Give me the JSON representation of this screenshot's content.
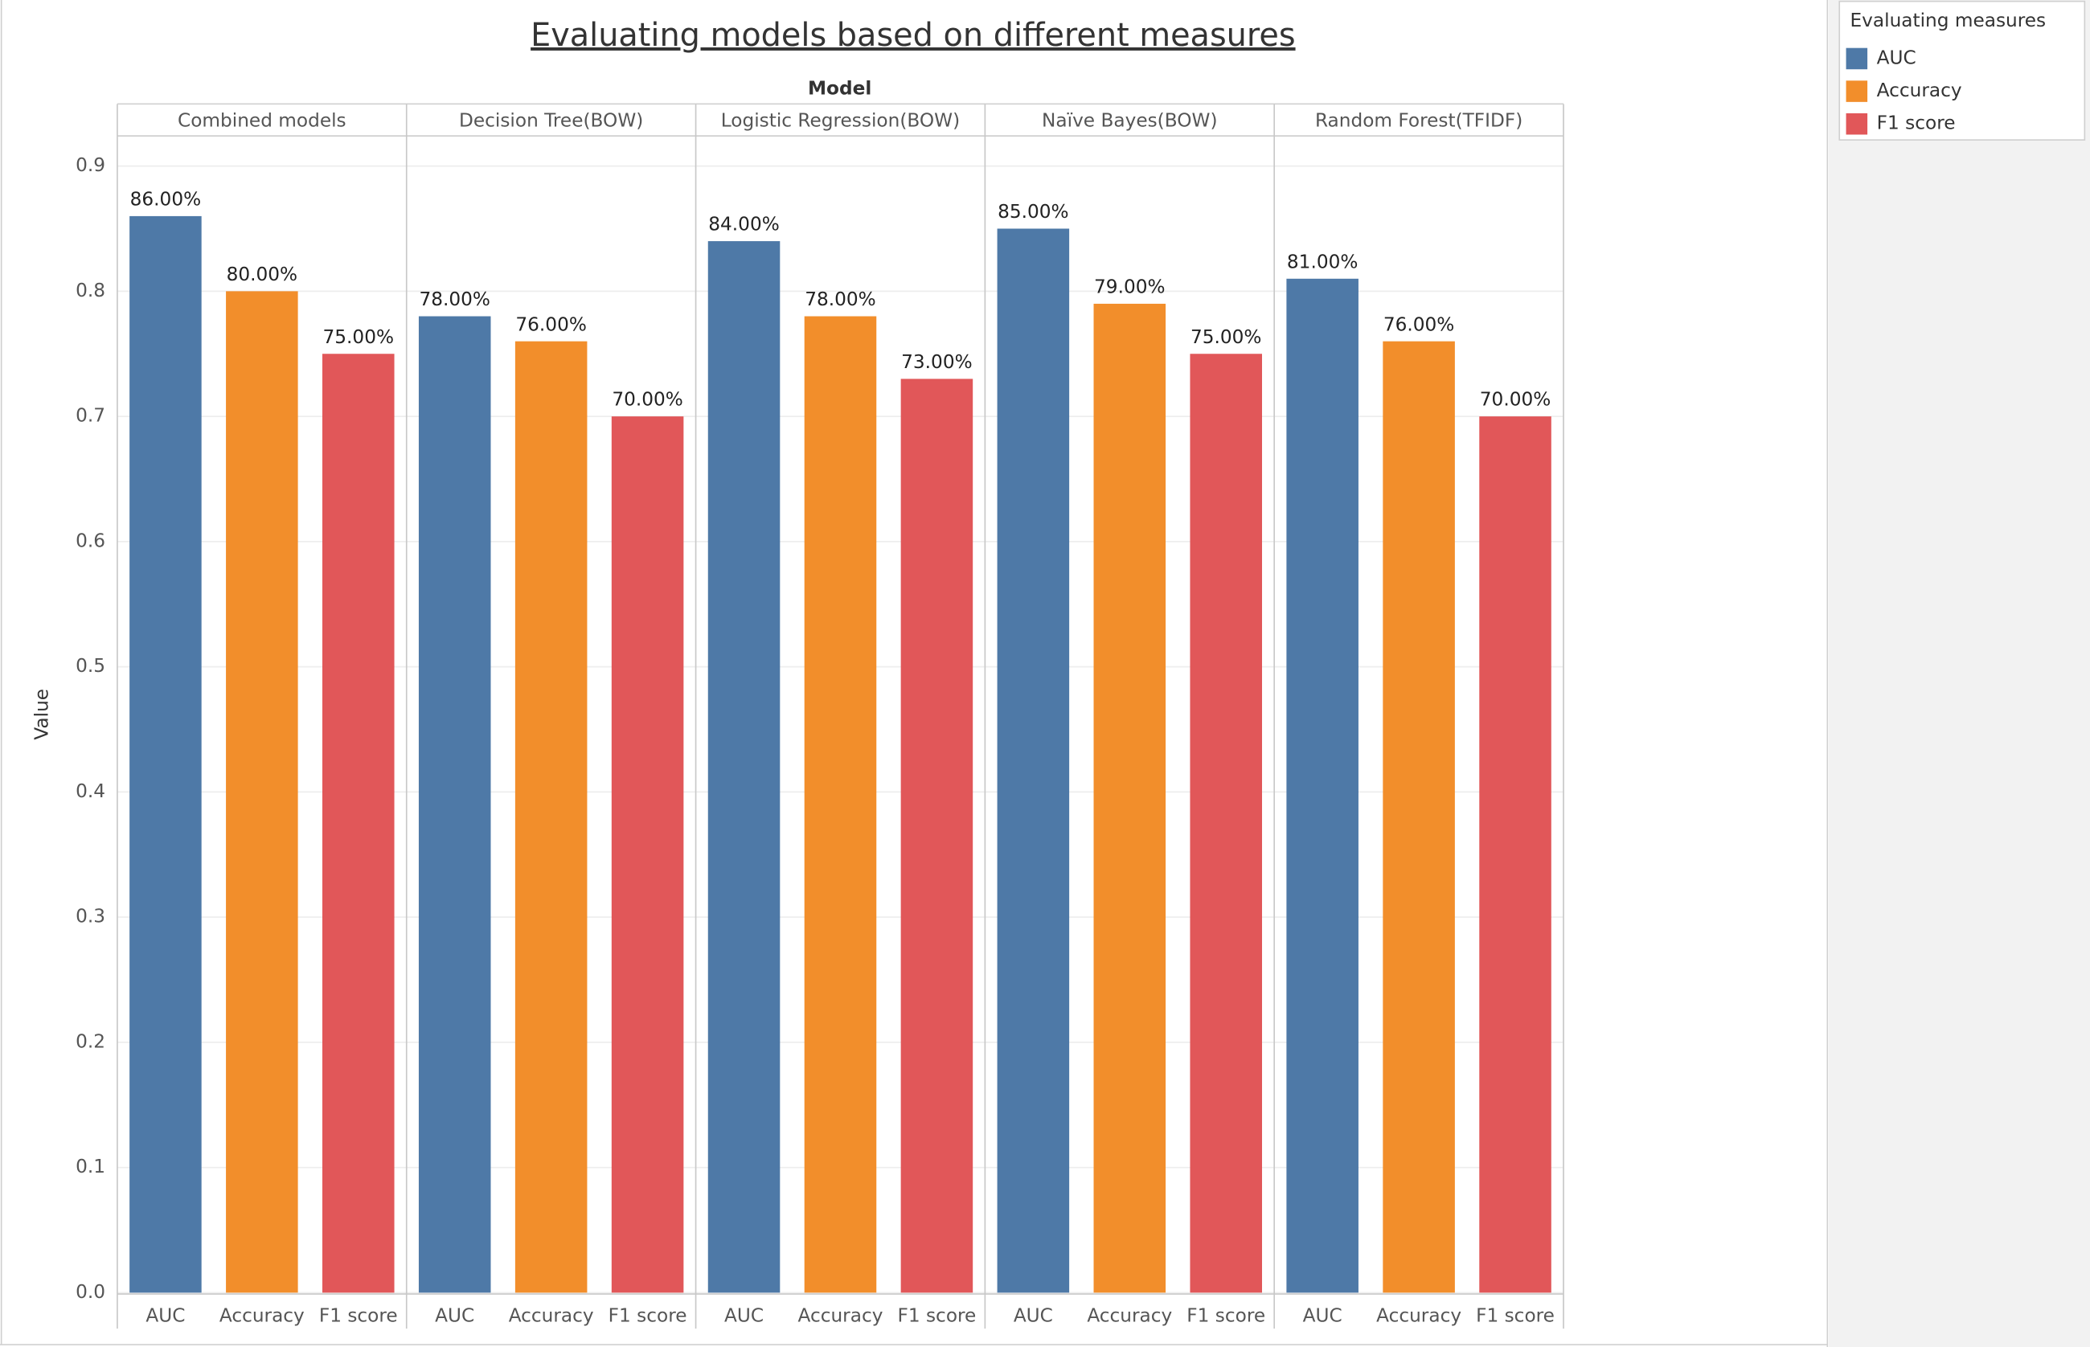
{
  "chart_data": {
    "type": "bar",
    "title": "Evaluating models based on different measures",
    "facet_label": "Model",
    "y_label": "Value",
    "legend_title": "Evaluating measures",
    "categories": [
      "Combined models",
      "Decision Tree(BOW)",
      "Logistic Regression(BOW)",
      "Naïve Bayes(BOW)",
      "Random Forest(TFIDF)"
    ],
    "series": [
      {
        "name": "AUC",
        "color": "#4e79a7",
        "values": [
          0.86,
          0.78,
          0.84,
          0.85,
          0.81
        ],
        "value_labels": [
          "86.00%",
          "78.00%",
          "84.00%",
          "85.00%",
          "81.00%"
        ]
      },
      {
        "name": "Accuracy",
        "color": "#f28e2b",
        "values": [
          0.8,
          0.76,
          0.78,
          0.79,
          0.76
        ],
        "value_labels": [
          "80.00%",
          "76.00%",
          "78.00%",
          "79.00%",
          "76.00%"
        ]
      },
      {
        "name": "F1 score",
        "color": "#e15759",
        "values": [
          0.75,
          0.7,
          0.73,
          0.75,
          0.7
        ],
        "value_labels": [
          "75.00%",
          "70.00%",
          "73.00%",
          "75.00%",
          "70.00%"
        ]
      }
    ],
    "ylim": [
      0,
      0.923
    ],
    "yticks": [
      {
        "value": 0,
        "label": "0.0"
      },
      0.1,
      0.2,
      0.3,
      0.4,
      0.5,
      0.6,
      0.7,
      0.8,
      0.9
    ],
    "grid": true
  }
}
